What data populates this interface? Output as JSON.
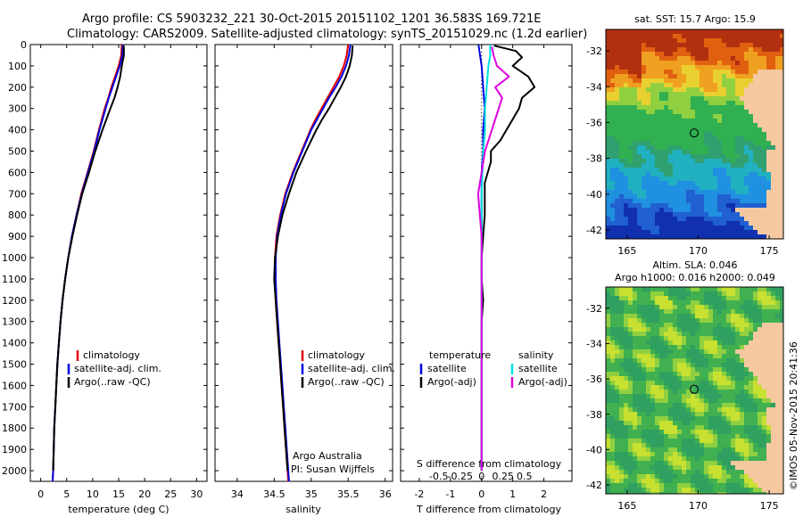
{
  "header": {
    "line1": "Argo profile: CS 5903232_221 30-Oct-2015 20151102_1201 36.583S 169.721E",
    "line2": "Climatology: CARS2009. Satellite-adjusted climatology: synTS_20151029.nc (1.2d earlier)"
  },
  "colors": {
    "climatology": "#e00000",
    "satellite_adj": "#0000e0",
    "argo": "#000000",
    "salinity_sat": "#00e0e0",
    "salinity_argo": "#e000e0",
    "land": "#f5c8a0"
  },
  "chart_data": [
    {
      "type": "line",
      "id": "temperature",
      "xlabel": "temperature (deg C)",
      "ylabel": "",
      "xlim": [
        -2,
        32
      ],
      "ylim": [
        2050,
        0
      ],
      "xticks": [
        "0",
        "5",
        "10",
        "15",
        "20",
        "25",
        "30"
      ],
      "xtick_values": [
        0,
        5,
        10,
        15,
        20,
        25,
        30
      ],
      "yticks": [
        "0",
        "100",
        "200",
        "300",
        "400",
        "500",
        "600",
        "700",
        "800",
        "900",
        "1000",
        "1100",
        "1200",
        "1300",
        "1400",
        "1500",
        "1600",
        "1700",
        "1800",
        "1900",
        "2000"
      ],
      "ytick_values": [
        0,
        100,
        200,
        300,
        400,
        500,
        600,
        700,
        800,
        900,
        1000,
        1100,
        1200,
        1300,
        1400,
        1500,
        1600,
        1700,
        1800,
        1900,
        2000
      ],
      "legend": [
        "climatology",
        "satellite-adj. clim.",
        "Argo(..raw -QC)"
      ],
      "series": [
        {
          "key": "climatology",
          "color": "#e00000",
          "depth": [
            0,
            50,
            100,
            150,
            200,
            250,
            300,
            400,
            500,
            600,
            700,
            800,
            900,
            1000,
            1100,
            1200,
            1300,
            1400,
            1500,
            1600,
            1700,
            1800,
            1900,
            2000,
            2050
          ],
          "values": [
            15.6,
            15.5,
            15.0,
            14.3,
            13.6,
            13.0,
            12.3,
            11.2,
            10.2,
            9.0,
            7.8,
            6.9,
            6.0,
            5.3,
            4.7,
            4.2,
            3.8,
            3.5,
            3.2,
            3.0,
            2.8,
            2.6,
            2.5,
            2.4,
            2.3
          ]
        },
        {
          "key": "satellite_adj",
          "color": "#0000e0",
          "depth": [
            0,
            50,
            100,
            150,
            200,
            250,
            300,
            400,
            500,
            600,
            700,
            800,
            900,
            1000,
            1100,
            1200,
            1300,
            1400,
            1500,
            1600,
            1700,
            1800,
            1900,
            2000,
            2050
          ],
          "values": [
            15.8,
            15.7,
            15.2,
            14.5,
            13.8,
            13.1,
            12.5,
            11.3,
            10.3,
            9.1,
            7.9,
            6.9,
            6.0,
            5.3,
            4.7,
            4.2,
            3.8,
            3.5,
            3.2,
            3.0,
            2.8,
            2.6,
            2.5,
            2.4,
            2.3
          ]
        },
        {
          "key": "argo",
          "color": "#000000",
          "depth": [
            5,
            50,
            100,
            150,
            200,
            250,
            300,
            400,
            500,
            600,
            700,
            800,
            900,
            1000,
            1100,
            1200,
            1300,
            1400,
            1500,
            1600,
            1700,
            1800,
            1900,
            2000
          ],
          "values": [
            16.0,
            16.0,
            15.6,
            15.3,
            14.8,
            14.2,
            13.4,
            11.9,
            10.5,
            9.3,
            8.0,
            7.0,
            6.1,
            5.3,
            4.7,
            4.2,
            3.8,
            3.5,
            3.2,
            3.0,
            2.8,
            2.6,
            2.5,
            2.4
          ]
        }
      ]
    },
    {
      "type": "line",
      "id": "salinity",
      "xlabel": "salinity",
      "ylabel": "",
      "xlim": [
        33.7,
        36.1
      ],
      "ylim": [
        2050,
        0
      ],
      "xticks": [
        "34",
        "34.5",
        "35",
        "35.5",
        "36"
      ],
      "xtick_values": [
        34,
        34.5,
        35,
        35.5,
        36
      ],
      "legend": [
        "climatology",
        "satellite-adj. clim.",
        "Argo(..raw -QC)"
      ],
      "annotation": [
        "Argo Australia",
        "PI: Susan Wijffels"
      ],
      "series": [
        {
          "key": "climatology",
          "color": "#e00000",
          "depth": [
            0,
            50,
            100,
            150,
            200,
            250,
            300,
            350,
            400,
            500,
            600,
            700,
            800,
            900,
            1000,
            1100,
            1200,
            1300,
            1400,
            1500,
            1600,
            1700,
            1800,
            1900,
            2000,
            2050
          ],
          "values": [
            35.5,
            35.48,
            35.44,
            35.38,
            35.3,
            35.22,
            35.14,
            35.06,
            34.99,
            34.87,
            34.75,
            34.65,
            34.58,
            34.53,
            34.51,
            34.51,
            34.52,
            34.54,
            34.56,
            34.58,
            34.6,
            34.62,
            34.64,
            34.66,
            34.68,
            34.69
          ]
        },
        {
          "key": "satellite_adj",
          "color": "#0000e0",
          "depth": [
            0,
            50,
            100,
            150,
            200,
            250,
            300,
            350,
            400,
            500,
            600,
            700,
            800,
            900,
            1000,
            1100,
            1200,
            1300,
            1400,
            1500,
            1600,
            1700,
            1800,
            1900,
            2000,
            2050
          ],
          "values": [
            35.53,
            35.51,
            35.47,
            35.41,
            35.33,
            35.24,
            35.16,
            35.08,
            35.0,
            34.88,
            34.76,
            34.66,
            34.59,
            34.54,
            34.52,
            34.52,
            34.53,
            34.55,
            34.57,
            34.59,
            34.61,
            34.63,
            34.65,
            34.67,
            34.69,
            34.7
          ]
        },
        {
          "key": "argo",
          "color": "#000000",
          "depth": [
            5,
            50,
            100,
            150,
            200,
            250,
            300,
            350,
            400,
            500,
            600,
            700,
            800,
            900,
            1000,
            1100,
            1200,
            1300,
            1400,
            1500,
            1600,
            1700,
            1800,
            1900,
            2000
          ],
          "values": [
            35.56,
            35.55,
            35.52,
            35.47,
            35.4,
            35.32,
            35.24,
            35.15,
            35.07,
            34.93,
            34.8,
            34.7,
            34.61,
            34.55,
            34.51,
            34.5,
            34.52,
            34.54,
            34.56,
            34.58,
            34.6,
            34.62,
            34.64,
            34.66,
            34.68
          ]
        }
      ]
    },
    {
      "type": "line",
      "id": "differences",
      "xlabel": "T difference from climatology",
      "title_bottom": "S difference from climatology",
      "xlim": [
        -2.6,
        2.9
      ],
      "ylim": [
        2050,
        0
      ],
      "xticks": [
        "-2",
        "-1",
        "0",
        "1",
        "2"
      ],
      "xtick_values": [
        -2,
        -1,
        0,
        1,
        2
      ],
      "sticks": [
        "-0.5",
        "-0.25",
        "0",
        "0.25",
        "0.5"
      ],
      "stick_values": [
        -0.5,
        -0.25,
        0,
        0.25,
        0.5
      ],
      "legend_left_title": "temperature",
      "legend_right_title": "salinity",
      "legend_left": [
        "satellite",
        "Argo(-adj)"
      ],
      "legend_right": [
        "satellite",
        "Argo(-adj)"
      ],
      "series": [
        {
          "key": "temp_satellite",
          "color": "#0000e0",
          "depth": [
            0,
            50,
            100,
            200,
            300,
            400,
            500,
            600,
            700,
            800,
            900,
            1000,
            1100,
            1200,
            1300,
            1400,
            1500,
            1600,
            1700,
            1800,
            1900,
            2000
          ],
          "values": [
            -0.1,
            -0.05,
            0.0,
            0.05,
            0.1,
            0.05,
            0.05,
            0.0,
            0.0,
            0.0,
            0.0,
            0.0,
            0.0,
            0.0,
            0.0,
            0.0,
            0.0,
            0.0,
            0.0,
            0.0,
            0.0,
            0.0
          ]
        },
        {
          "key": "temp_argo",
          "color": "#000000",
          "depth": [
            5,
            30,
            60,
            100,
            150,
            200,
            250,
            300,
            350,
            400,
            450,
            500,
            550,
            600,
            650,
            700,
            800,
            900,
            1000,
            1100,
            1200,
            1300,
            1400,
            1500,
            1600,
            1700,
            1800,
            1900,
            2000
          ],
          "values": [
            0.4,
            1.1,
            1.3,
            1.0,
            1.5,
            1.7,
            1.3,
            1.2,
            1.0,
            0.8,
            0.6,
            0.3,
            0.3,
            0.2,
            0.1,
            0.1,
            0.1,
            0.05,
            0.0,
            0.0,
            0.05,
            0.0,
            0.0,
            0.0,
            0.0,
            0.0,
            0.0,
            0.0,
            0.0
          ]
        },
        {
          "key": "sal_satellite",
          "color": "#00e0e0",
          "depth": [
            0,
            50,
            100,
            200,
            300,
            400,
            500,
            700,
            900,
            1100,
            1300,
            1500,
            1700,
            1900,
            2000
          ],
          "values": [
            0.05,
            0.05,
            0.04,
            0.03,
            0.02,
            0.02,
            0.01,
            0.0,
            0.0,
            0.0,
            0.0,
            0.0,
            0.0,
            0.0,
            0.0
          ]
        },
        {
          "key": "sal_argo",
          "color": "#e000e0",
          "depth": [
            10,
            50,
            100,
            150,
            200,
            250,
            300,
            350,
            400,
            500,
            600,
            700,
            800,
            900,
            1000,
            1200,
            1400,
            1600,
            1800,
            2000
          ],
          "values": [
            0.06,
            0.07,
            0.09,
            0.16,
            0.08,
            0.12,
            0.1,
            0.08,
            0.06,
            0.02,
            0.0,
            -0.02,
            -0.01,
            0.0,
            0.0,
            0.0,
            0.0,
            0.0,
            0.0,
            0.0
          ]
        }
      ]
    },
    {
      "type": "heatmap",
      "id": "sst_map",
      "title": "sat. SST: 15.7  Argo: 15.9",
      "xlim": [
        163.5,
        176
      ],
      "ylim": [
        -42.5,
        -30.8
      ],
      "xticks": [
        "165",
        "170",
        "175"
      ],
      "xtick_values": [
        165,
        170,
        175
      ],
      "yticks": [
        "-32",
        "-34",
        "-36",
        "-38",
        "-40",
        "-42"
      ],
      "ytick_values": [
        -32,
        -34,
        -36,
        -38,
        -40,
        -42
      ],
      "argo_position": [
        169.721,
        -36.583
      ]
    },
    {
      "type": "heatmap",
      "id": "sla_map",
      "title_lines": [
        "Altim. SLA: 0.046",
        "Argo h1000: 0.016 h2000: 0.049"
      ],
      "xlim": [
        163.5,
        176
      ],
      "ylim": [
        -42.5,
        -30.8
      ],
      "xticks": [
        "165",
        "170",
        "175"
      ],
      "xtick_values": [
        165,
        170,
        175
      ],
      "yticks": [
        "-32",
        "-34",
        "-36",
        "-38",
        "-40",
        "-42"
      ],
      "ytick_values": [
        -32,
        -34,
        -36,
        -38,
        -40,
        -42
      ],
      "argo_position": [
        169.721,
        -36.583
      ]
    }
  ],
  "footer": {
    "stamp": "©IMOS 05-Nov-2015 20:41:36"
  }
}
